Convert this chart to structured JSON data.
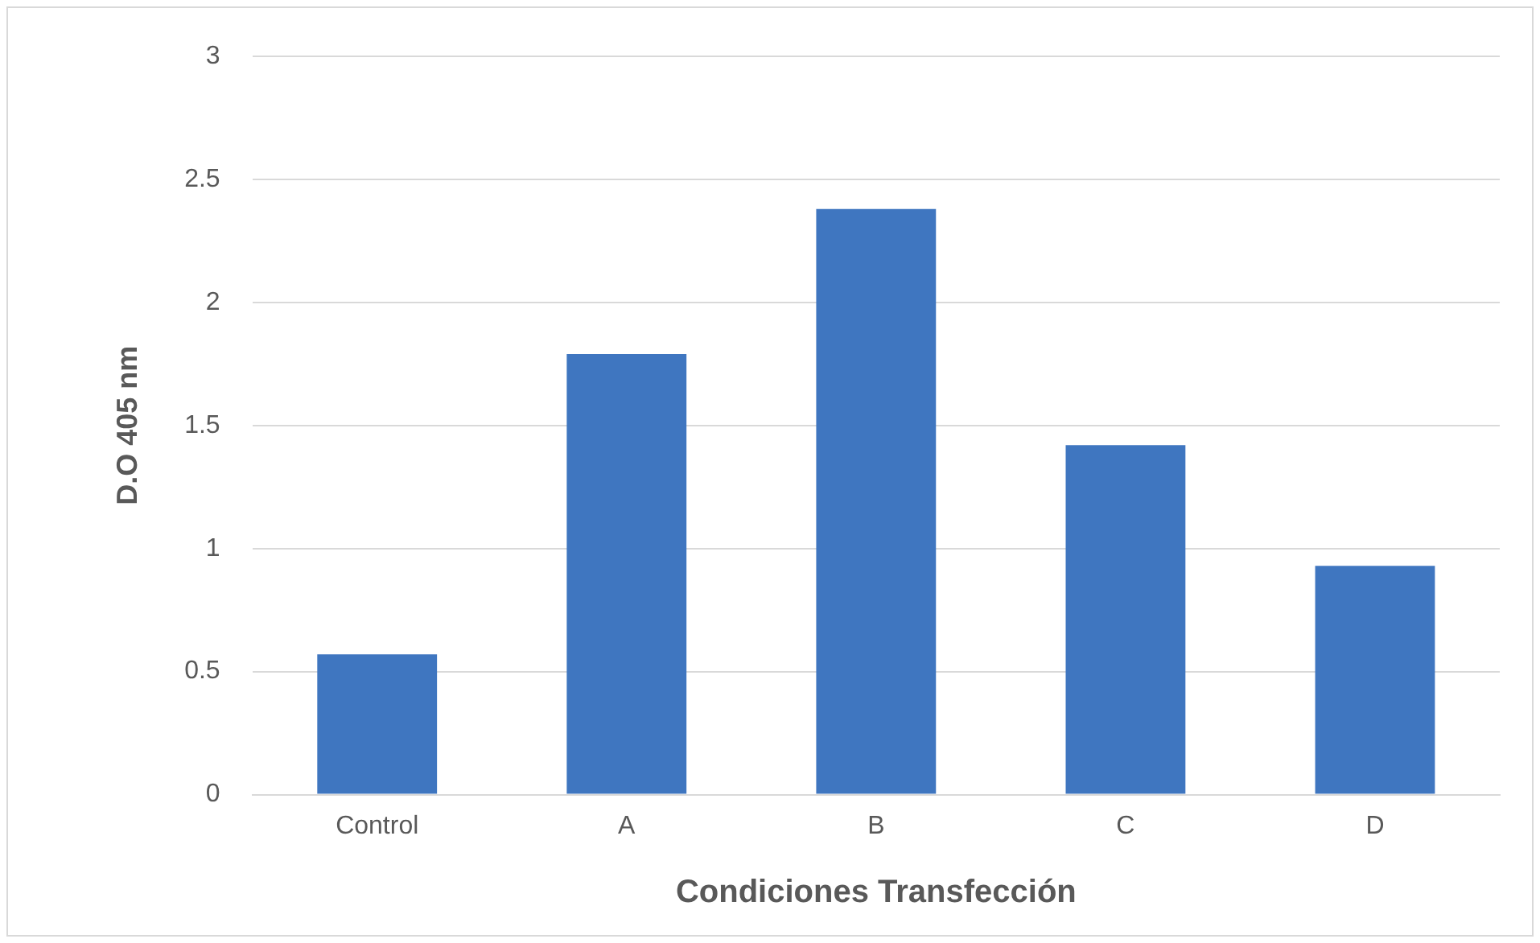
{
  "chart_data": {
    "type": "bar",
    "xlabel": "Condiciones Transfección",
    "ylabel": "D.O 405 nm",
    "categories": [
      "Control",
      "A",
      "B",
      "C",
      "D"
    ],
    "values": [
      0.57,
      1.79,
      2.38,
      1.42,
      0.93
    ],
    "color": "#3f76c0",
    "ylim": [
      0,
      3
    ],
    "yticks": [
      0,
      0.5,
      1,
      1.5,
      2,
      2.5,
      3
    ],
    "grid": "y"
  }
}
